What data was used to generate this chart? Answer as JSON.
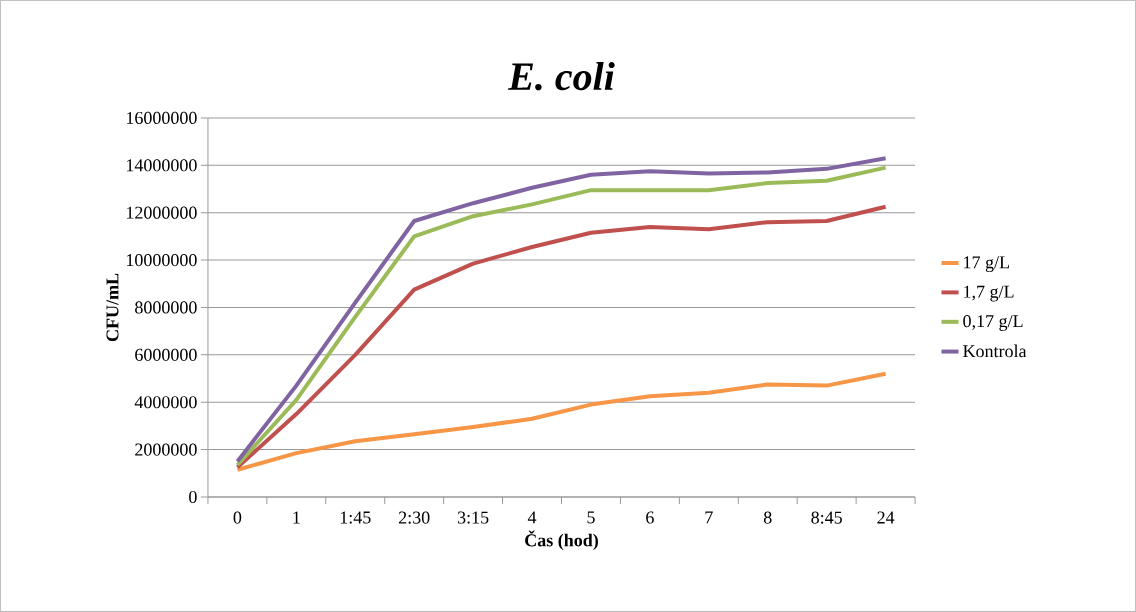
{
  "chart_data": {
    "type": "line",
    "title": "*E. coli*",
    "xlabel": "Čas (hod)",
    "ylabel": "CFU/mL",
    "categories": [
      "0",
      "1",
      "1:45",
      "2:30",
      "3:15",
      "4",
      "5",
      "6",
      "7",
      "8",
      "8:45",
      "24"
    ],
    "series": [
      {
        "name": "17 g/L",
        "color": "#f79646",
        "values": [
          1150000,
          1850000,
          2350000,
          2650000,
          2950000,
          3300000,
          3900000,
          4250000,
          4400000,
          4750000,
          4700000,
          5200000
        ]
      },
      {
        "name": "1,7 g/L",
        "color": "#c0504d",
        "values": [
          1250000,
          3500000,
          6000000,
          8750000,
          9850000,
          10550000,
          11150000,
          11400000,
          11300000,
          11600000,
          11650000,
          12250000
        ]
      },
      {
        "name": "0,17 g/L",
        "color": "#9bbb59",
        "values": [
          1350000,
          4100000,
          7600000,
          11000000,
          11850000,
          12350000,
          12950000,
          12950000,
          12950000,
          13250000,
          13350000,
          13900000
        ]
      },
      {
        "name": "Kontrola",
        "color": "#8064a2",
        "values": [
          1500000,
          4700000,
          8200000,
          11650000,
          12400000,
          13050000,
          13600000,
          13750000,
          13650000,
          13700000,
          13850000,
          14300000
        ]
      }
    ],
    "ylim": [
      0,
      16000000
    ],
    "yticks": [
      0,
      2000000,
      4000000,
      6000000,
      8000000,
      10000000,
      12000000,
      14000000,
      16000000
    ],
    "grid": "y",
    "legend": "right",
    "marker": "none",
    "line_style": "solid"
  }
}
